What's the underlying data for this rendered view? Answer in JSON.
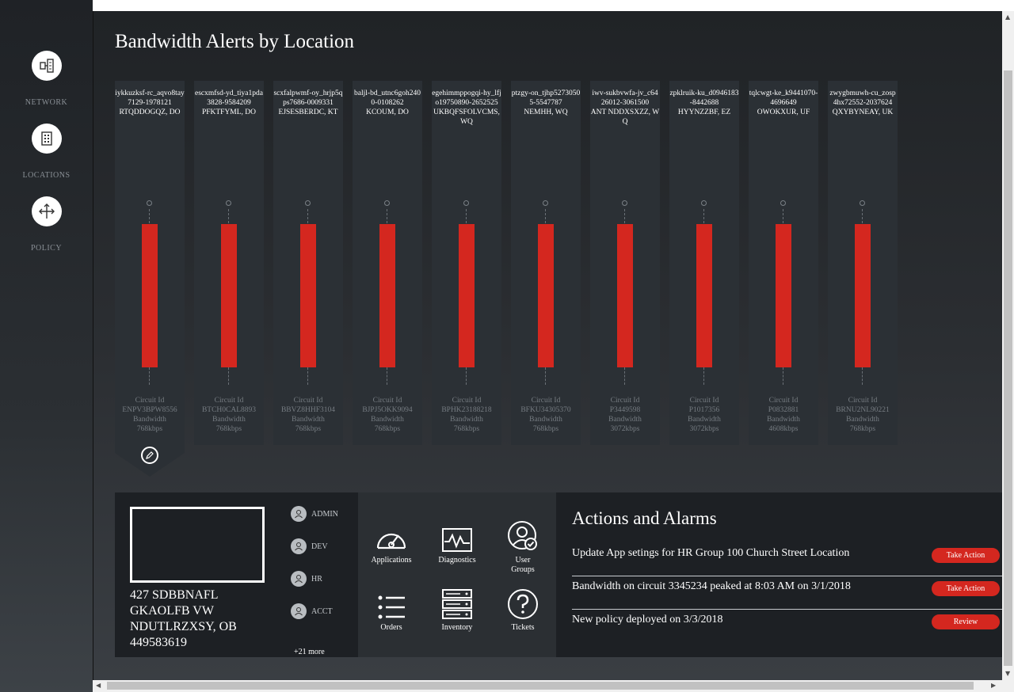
{
  "sidebar": {
    "items": [
      {
        "label": "NETWORK",
        "icon": "network-icon"
      },
      {
        "label": "LOCATIONS",
        "icon": "building-icon"
      },
      {
        "label": "POLICY",
        "icon": "move-arrows-icon"
      }
    ]
  },
  "main": {
    "title": "Bandwidth Alerts by Location"
  },
  "locations": [
    {
      "name": "iykkuzksf-rc_aqvo8tay7129-1978121",
      "addr": "RTQDDOGQZ, DO",
      "circuit_label": "Circuit Id",
      "circuit_id": "ENPV3BPW8556",
      "bw_label": "Bandwidth",
      "bandwidth": "768kbps"
    },
    {
      "name": "escxmfsd-yd_tiya1pda3828-9584209",
      "addr": "PFKTFYML, DO",
      "circuit_label": "Circuit Id",
      "circuit_id": "BTCH0CAL8893",
      "bw_label": "Bandwidth",
      "bandwidth": "768kbps"
    },
    {
      "name": "scxfalpwmf-oy_hrjp5qps7686-0009331",
      "addr": "EJSESBERDC, KT",
      "circuit_label": "Circuit Id",
      "circuit_id": "BBVZ8HHF3104",
      "bw_label": "Bandwidth",
      "bandwidth": "768kbps"
    },
    {
      "name": "baljl-bd_utnc6goh2400-0108262",
      "addr": "KCOUM, DO",
      "circuit_label": "Circuit Id",
      "circuit_id": "BJPJ5OKK9094",
      "bw_label": "Bandwidth",
      "bandwidth": "768kbps"
    },
    {
      "name": "egehimmppogqi-hy_lfjo19750890-2652525",
      "addr": "UKBQFSFOLVCMS, WQ",
      "circuit_label": "Circuit Id",
      "circuit_id": "BPHK23188218",
      "bw_label": "Bandwidth",
      "bandwidth": "768kbps"
    },
    {
      "name": "ptzgy-on_tjhp52730505-5547787",
      "addr": "NEMHH, WQ",
      "circuit_label": "Circuit Id",
      "circuit_id": "BFKU34305370",
      "bw_label": "Bandwidth",
      "bandwidth": "768kbps"
    },
    {
      "name": "iwv-sukbvwfa-jv_c6426012-3061500",
      "addr": "ANT NDDXSXZZ, WQ",
      "circuit_label": "Circuit Id",
      "circuit_id": "P3449598",
      "bw_label": "Bandwidth",
      "bandwidth": "3072kbps"
    },
    {
      "name": "zpklruik-ku_d0946183-8442688",
      "addr": "HYYNZZBF, EZ",
      "circuit_label": "Circuit Id",
      "circuit_id": "P1017356",
      "bw_label": "Bandwidth",
      "bandwidth": "3072kbps"
    },
    {
      "name": "tqlcwgt-ke_k9441070-4696649",
      "addr": "OWOKXUR, UF",
      "circuit_label": "Circuit Id",
      "circuit_id": "P0832881",
      "bw_label": "Bandwidth",
      "bandwidth": "4608kbps"
    },
    {
      "name": "zwygbmuwh-cu_zosp4hx72552-2037624",
      "addr": "QXYBYNEAY, UK",
      "circuit_label": "Circuit Id",
      "circuit_id": "BRNU2NL90221",
      "bw_label": "Bandwidth",
      "bandwidth": "768kbps"
    }
  ],
  "site": {
    "address_lines": [
      "427 SDBBNAFL",
      "GKAOLFB VW",
      "NDUTLRZXSY, OB",
      "449583619"
    ]
  },
  "groups": {
    "items": [
      "ADMIN",
      "DEV",
      "HR",
      "ACCT"
    ],
    "more": "+21 more"
  },
  "tools": [
    {
      "label": "Applications",
      "icon": "gauge-icon"
    },
    {
      "label": "Diagnostics",
      "icon": "pulse-icon"
    },
    {
      "label": "User Groups",
      "icon": "user-check-icon"
    },
    {
      "label": "Orders",
      "icon": "list-icon"
    },
    {
      "label": "Inventory",
      "icon": "server-icon"
    },
    {
      "label": "Tickets",
      "icon": "question-icon"
    }
  ],
  "actions": {
    "title": "Actions and Alarms",
    "items": [
      {
        "text": "Update App setings for HR Group 100 Church Street Location",
        "button": "Take Action"
      },
      {
        "text": "Bandwidth on circuit 3345234 peaked at 8:03 AM on 3/1/2018",
        "button": "Take Action"
      },
      {
        "text": "New policy deployed on 3/3/2018",
        "button": "Review"
      }
    ]
  },
  "colors": {
    "alert": "#d4271f",
    "panel": "#1d2024",
    "card": "#2b3035"
  }
}
